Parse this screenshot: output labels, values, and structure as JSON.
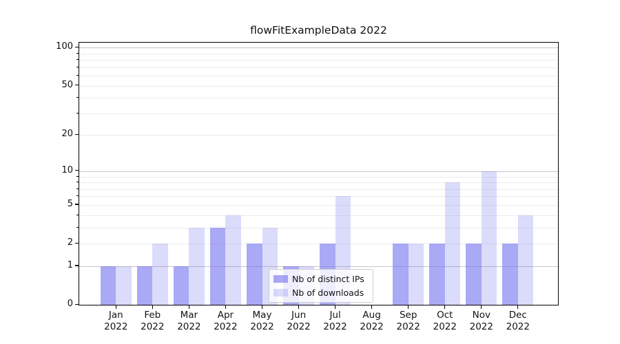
{
  "figure": {
    "title": "flowFitExampleData 2022"
  },
  "colors": {
    "ips": "rgba(112,112,240,0.60)",
    "downloads": "rgba(112,112,240,0.25)",
    "grid_major": "#c6c6c6",
    "grid_minor": "#ececec",
    "spine": "#000000",
    "text": "#111111"
  },
  "legend": {
    "items": [
      {
        "label": "Nb of distinct IPs",
        "color_key": "ips"
      },
      {
        "label": "Nb of downloads",
        "color_key": "downloads"
      }
    ]
  },
  "chart_data": {
    "type": "bar",
    "title": "flowFitExampleData 2022",
    "categories": [
      "Jan 2022",
      "Feb 2022",
      "Mar 2022",
      "Apr 2022",
      "May 2022",
      "Jun 2022",
      "Jul 2022",
      "Aug 2022",
      "Sep 2022",
      "Oct 2022",
      "Nov 2022",
      "Dec 2022"
    ],
    "series": [
      {
        "name": "Nb of distinct IPs",
        "values": [
          1,
          1,
          1,
          3,
          2,
          1,
          2,
          0,
          2,
          2,
          2,
          2
        ]
      },
      {
        "name": "Nb of downloads",
        "values": [
          1,
          2,
          3,
          4,
          3,
          1,
          6,
          0,
          2,
          8,
          10,
          4
        ]
      }
    ],
    "xlabel": "",
    "ylabel": "",
    "y_scale": "log1p",
    "ylim": [
      0,
      111
    ],
    "y_ticks_labeled": [
      0,
      1,
      2,
      5,
      10,
      20,
      50,
      100
    ],
    "y_grid_major": [
      1,
      10,
      100
    ],
    "y_grid_minor": [
      2,
      3,
      4,
      5,
      6,
      7,
      8,
      9,
      20,
      30,
      40,
      50,
      60,
      70,
      80,
      90
    ],
    "grid": true,
    "legend_position": "inside-bottom-center"
  }
}
